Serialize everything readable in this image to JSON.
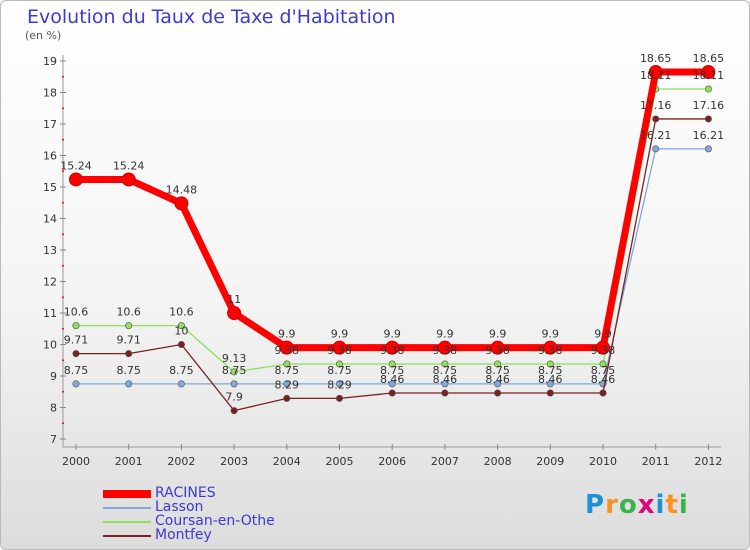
{
  "title": "Evolution du Taux de Taxe d'Habitation",
  "subtitle": "(en %)",
  "logo": {
    "text": "Proxiti",
    "colors": [
      "#1f8fd8",
      "#f7931e",
      "#3cb34a",
      "#e5007e",
      "#1f8fd8",
      "#f7931e",
      "#3cb34a"
    ]
  },
  "chart_data": {
    "type": "line",
    "x": [
      "2000",
      "2001",
      "2002",
      "2003",
      "2004",
      "2005",
      "2006",
      "2007",
      "2008",
      "2009",
      "2010",
      "2011",
      "2012"
    ],
    "ylim": [
      7,
      19
    ],
    "yticks": [
      7,
      8,
      9,
      10,
      11,
      12,
      13,
      14,
      15,
      16,
      17,
      18,
      19
    ],
    "grid": false,
    "legend_position": "bottom-left",
    "series": [
      {
        "name": "RACINES",
        "color": "#ff0000",
        "values": [
          15.24,
          15.24,
          14.48,
          11,
          9.9,
          9.9,
          9.9,
          9.9,
          9.9,
          9.9,
          9.9,
          18.65,
          18.65
        ],
        "labels": [
          "15.24",
          "15.24",
          "14.48",
          "11",
          "9.9",
          "9.9",
          "9.9",
          "9.9",
          "9.9",
          "9.9",
          "9.9",
          "18.65",
          "18.65"
        ]
      },
      {
        "name": "Lasson",
        "color": "#7fa9d8",
        "values": [
          8.75,
          8.75,
          8.75,
          8.75,
          8.75,
          8.75,
          8.75,
          8.75,
          8.75,
          8.75,
          8.75,
          16.21,
          16.21
        ],
        "labels": [
          "8.75",
          "8.75",
          "8.75",
          "8.75",
          "8.75",
          "8.75",
          "8.75",
          "8.75",
          "8.75",
          "8.75",
          "8.75",
          "16.21",
          "16.21"
        ]
      },
      {
        "name": "Coursan-en-Othe",
        "color": "#8fe05a",
        "values": [
          10.6,
          10.6,
          10.6,
          9.13,
          9.38,
          9.38,
          9.38,
          9.38,
          9.38,
          9.38,
          9.38,
          18.11,
          18.11
        ],
        "labels": [
          "10.6",
          "10.6",
          "10.6",
          "9.13",
          "9.38",
          "9.38",
          "9.38",
          "9.38",
          "9.38",
          "9.38",
          "9.38",
          "18.11",
          "18.11"
        ]
      },
      {
        "name": "Montfey",
        "color": "#7a2020",
        "values": [
          9.71,
          9.71,
          10,
          7.9,
          8.29,
          8.29,
          8.46,
          8.46,
          8.46,
          8.46,
          8.46,
          17.16,
          17.16
        ],
        "labels": [
          "9.71",
          "9.71",
          "10",
          "7.9",
          "8.29",
          "8.29",
          "8.46",
          "8.46",
          "8.46",
          "8.46",
          "8.46",
          "17.16",
          "17.16"
        ]
      }
    ]
  }
}
